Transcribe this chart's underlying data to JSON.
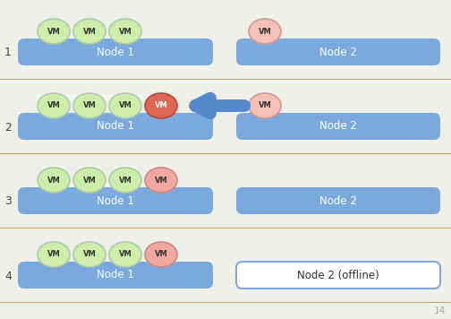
{
  "background_color": "#f0f0eb",
  "row_separator_color": "#c8a060",
  "node_color": "#7aaadd",
  "node_text_color": "white",
  "vm_green_face": "#cceeaa",
  "vm_green_edge": "#aaccaa",
  "vm_red_face": "#dd6655",
  "vm_red_edge": "#bb4433",
  "vm_pink_face": "#f0a8a0",
  "vm_pink_edge": "#cc8880",
  "vm_lightpink_face": "#f5c0b8",
  "vm_lightpink_edge": "#d09890",
  "offline_box_edge": "#7aaadd",
  "arrow_color": "#5588cc",
  "step_label_color": "#444444",
  "page_num_color": "#aaaaaa",
  "fig_w": 5.04,
  "fig_h": 3.56,
  "dpi": 100,
  "rows": [
    {
      "step": "1",
      "node1_vms": [
        "green",
        "green",
        "green"
      ],
      "node2_vms": [
        "lightpink"
      ],
      "node2_offline": false,
      "node2_label": "Node 2",
      "arrow": false
    },
    {
      "step": "2",
      "node1_vms": [
        "green",
        "green",
        "green",
        "red"
      ],
      "node2_vms": [
        "lightpink"
      ],
      "node2_offline": false,
      "node2_label": "Node 2",
      "arrow": true
    },
    {
      "step": "3",
      "node1_vms": [
        "green",
        "green",
        "green",
        "pink"
      ],
      "node2_vms": [],
      "node2_offline": false,
      "node2_label": "Node 2",
      "arrow": false
    },
    {
      "step": "4",
      "node1_vms": [
        "green",
        "green",
        "green",
        "pink"
      ],
      "node2_vms": [],
      "node2_offline": true,
      "node2_label": "Node 2 (offline)",
      "arrow": false
    }
  ]
}
